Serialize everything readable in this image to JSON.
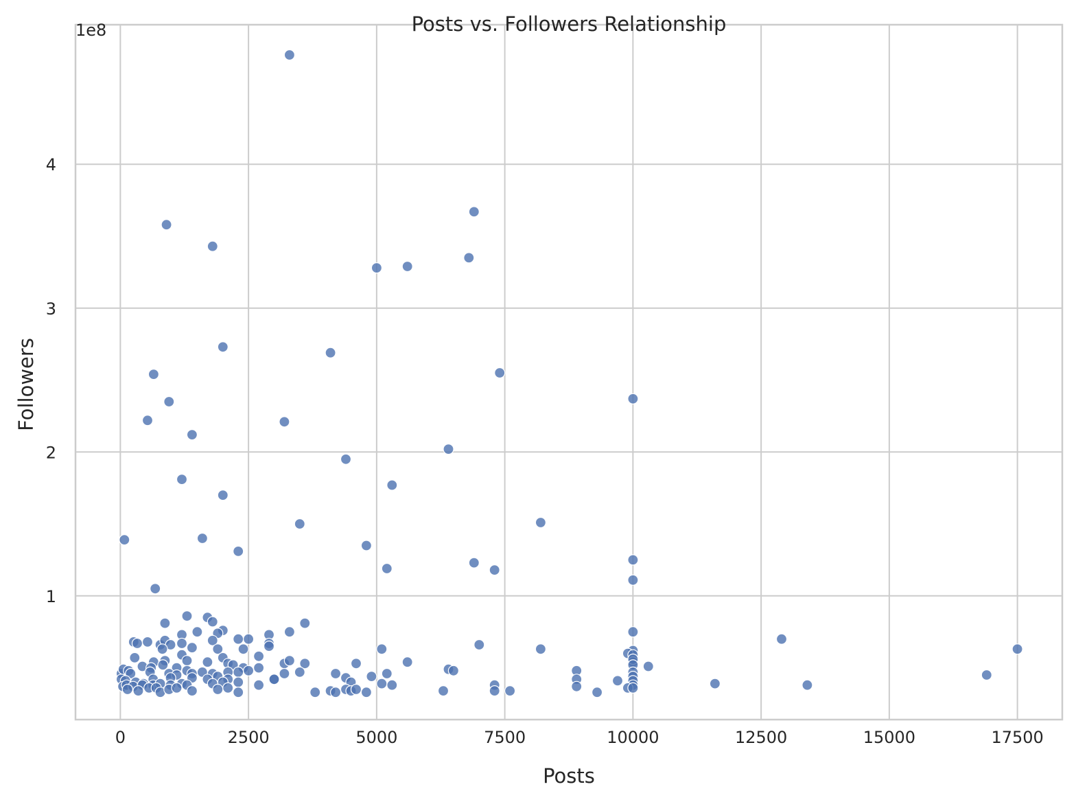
{
  "chart_data": {
    "type": "scatter",
    "title": "Posts vs. Followers Relationship",
    "xlabel": "Posts",
    "ylabel": "Followers",
    "y_offset_label": "1e8",
    "xlim": [
      -875,
      18375
    ],
    "ylim": [
      14000000,
      497000000
    ],
    "x_ticks": [
      0,
      2500,
      5000,
      7500,
      10000,
      12500,
      15000,
      17500
    ],
    "x_tick_labels": [
      "0",
      "2500",
      "5000",
      "7500",
      "10000",
      "12500",
      "15000",
      "17500"
    ],
    "y_ticks": [
      100000000,
      200000000,
      300000000,
      400000000
    ],
    "y_tick_labels": [
      "1",
      "2",
      "3",
      "4"
    ],
    "grid": true,
    "color": "#4c72b0",
    "points": [
      [
        3300,
        476000000
      ],
      [
        6900,
        367000000
      ],
      [
        900,
        358000000
      ],
      [
        1800,
        343000000
      ],
      [
        6800,
        335000000
      ],
      [
        5600,
        329000000
      ],
      [
        5000,
        328000000
      ],
      [
        2000,
        273000000
      ],
      [
        4100,
        269000000
      ],
      [
        7400,
        255000000
      ],
      [
        650,
        254000000
      ],
      [
        950,
        235000000
      ],
      [
        10000,
        237000000
      ],
      [
        530,
        222000000
      ],
      [
        3200,
        221000000
      ],
      [
        1400,
        212000000
      ],
      [
        6400,
        202000000
      ],
      [
        4400,
        195000000
      ],
      [
        1200,
        181000000
      ],
      [
        5300,
        177000000
      ],
      [
        2000,
        170000000
      ],
      [
        3500,
        150000000
      ],
      [
        8200,
        151000000
      ],
      [
        80,
        139000000
      ],
      [
        1600,
        140000000
      ],
      [
        4800,
        135000000
      ],
      [
        2300,
        131000000
      ],
      [
        6900,
        123000000
      ],
      [
        10000,
        125000000
      ],
      [
        5200,
        119000000
      ],
      [
        7300,
        118000000
      ],
      [
        10000,
        111000000
      ],
      [
        680,
        105000000
      ],
      [
        1300,
        86000000
      ],
      [
        1700,
        85000000
      ],
      [
        870,
        81000000
      ],
      [
        1800,
        82000000
      ],
      [
        3600,
        81000000
      ],
      [
        1500,
        75000000
      ],
      [
        2000,
        76000000
      ],
      [
        1900,
        74000000
      ],
      [
        3300,
        75000000
      ],
      [
        10000,
        75000000
      ],
      [
        1200,
        73000000
      ],
      [
        2900,
        73000000
      ],
      [
        12900,
        70000000
      ],
      [
        260,
        68000000
      ],
      [
        330,
        67000000
      ],
      [
        530,
        68000000
      ],
      [
        780,
        66000000
      ],
      [
        870,
        69000000
      ],
      [
        980,
        66000000
      ],
      [
        1200,
        67000000
      ],
      [
        1800,
        69000000
      ],
      [
        2300,
        70000000
      ],
      [
        2500,
        70000000
      ],
      [
        2900,
        67000000
      ],
      [
        7000,
        66000000
      ],
      [
        820,
        63000000
      ],
      [
        1400,
        64000000
      ],
      [
        1900,
        63000000
      ],
      [
        2400,
        63000000
      ],
      [
        2900,
        65000000
      ],
      [
        5100,
        63000000
      ],
      [
        8200,
        63000000
      ],
      [
        10000,
        62000000
      ],
      [
        17500,
        63000000
      ],
      [
        1200,
        59000000
      ],
      [
        2000,
        57000000
      ],
      [
        2700,
        58000000
      ],
      [
        9900,
        60000000
      ],
      [
        10000,
        59000000
      ],
      [
        280,
        57000000
      ],
      [
        650,
        54000000
      ],
      [
        870,
        55000000
      ],
      [
        1300,
        55000000
      ],
      [
        1700,
        54000000
      ],
      [
        2100,
        53000000
      ],
      [
        2200,
        52000000
      ],
      [
        3200,
        53000000
      ],
      [
        3300,
        55000000
      ],
      [
        3600,
        53000000
      ],
      [
        4600,
        53000000
      ],
      [
        5600,
        54000000
      ],
      [
        10000,
        54000000
      ],
      [
        10000,
        56000000
      ],
      [
        10000,
        52000000
      ],
      [
        10300,
        51000000
      ],
      [
        430,
        51000000
      ],
      [
        600,
        50000000
      ],
      [
        830,
        52000000
      ],
      [
        1100,
        50000000
      ],
      [
        1300,
        48000000
      ],
      [
        1600,
        47000000
      ],
      [
        1800,
        46000000
      ],
      [
        2100,
        47000000
      ],
      [
        2400,
        50000000
      ],
      [
        2500,
        48000000
      ],
      [
        2700,
        50000000
      ],
      [
        3200,
        46000000
      ],
      [
        3500,
        47000000
      ],
      [
        4200,
        46000000
      ],
      [
        5200,
        46000000
      ],
      [
        6400,
        49000000
      ],
      [
        6500,
        48000000
      ],
      [
        8900,
        48000000
      ],
      [
        10000,
        47000000
      ],
      [
        16900,
        45000000
      ],
      [
        20,
        46000000
      ],
      [
        60,
        49000000
      ],
      [
        160,
        48000000
      ],
      [
        200,
        46000000
      ],
      [
        580,
        47000000
      ],
      [
        950,
        46000000
      ],
      [
        1100,
        45000000
      ],
      [
        1400,
        46000000
      ],
      [
        1900,
        44000000
      ],
      [
        2300,
        47000000
      ],
      [
        4900,
        44000000
      ],
      [
        10000,
        44000000
      ],
      [
        20,
        42000000
      ],
      [
        100,
        41000000
      ],
      [
        300,
        40000000
      ],
      [
        450,
        39000000
      ],
      [
        640,
        42000000
      ],
      [
        980,
        43000000
      ],
      [
        1400,
        43000000
      ],
      [
        1700,
        42000000
      ],
      [
        2100,
        42000000
      ],
      [
        3000,
        42000000
      ],
      [
        4400,
        43000000
      ],
      [
        8900,
        42000000
      ],
      [
        9700,
        41000000
      ],
      [
        10000,
        41000000
      ],
      [
        50,
        37000000
      ],
      [
        120,
        38000000
      ],
      [
        250,
        37000000
      ],
      [
        430,
        38000000
      ],
      [
        640,
        38000000
      ],
      [
        780,
        39000000
      ],
      [
        980,
        38000000
      ],
      [
        1200,
        39000000
      ],
      [
        1300,
        38000000
      ],
      [
        1800,
        39000000
      ],
      [
        2000,
        40000000
      ],
      [
        2300,
        40000000
      ],
      [
        2700,
        38000000
      ],
      [
        3000,
        42000000
      ],
      [
        4500,
        40000000
      ],
      [
        5100,
        39000000
      ],
      [
        5300,
        38000000
      ],
      [
        7300,
        38000000
      ],
      [
        8900,
        37000000
      ],
      [
        10000,
        38000000
      ],
      [
        11600,
        39000000
      ],
      [
        13400,
        38000000
      ],
      [
        140,
        35000000
      ],
      [
        350,
        34000000
      ],
      [
        560,
        36000000
      ],
      [
        700,
        36000000
      ],
      [
        780,
        33000000
      ],
      [
        950,
        35000000
      ],
      [
        1100,
        36000000
      ],
      [
        1400,
        34000000
      ],
      [
        1900,
        35000000
      ],
      [
        2100,
        36000000
      ],
      [
        2300,
        33000000
      ],
      [
        3800,
        33000000
      ],
      [
        4100,
        34000000
      ],
      [
        4200,
        33000000
      ],
      [
        4400,
        35000000
      ],
      [
        4500,
        34000000
      ],
      [
        4600,
        35000000
      ],
      [
        4800,
        33000000
      ],
      [
        6300,
        34000000
      ],
      [
        7300,
        34000000
      ],
      [
        7600,
        34000000
      ],
      [
        9300,
        33000000
      ],
      [
        9900,
        36000000
      ],
      [
        10000,
        36000000
      ]
    ]
  }
}
